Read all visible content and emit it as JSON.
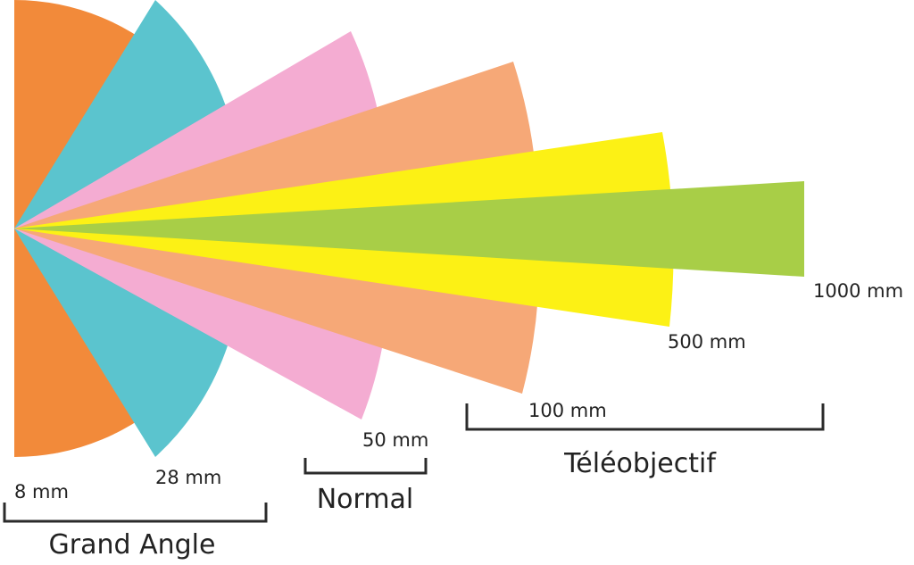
{
  "wedges": [
    {
      "focal_length": "8 mm",
      "color": "#F28A3A"
    },
    {
      "focal_length": "28 mm",
      "color": "#5BC4CE"
    },
    {
      "focal_length": "50 mm",
      "color": "#F4ACD2"
    },
    {
      "focal_length": "100 mm",
      "color": "#F6A877"
    },
    {
      "focal_length": "500 mm",
      "color": "#FCF115"
    },
    {
      "focal_length": "1000 mm",
      "color": "#A8CE47"
    }
  ],
  "groups": {
    "wide": "Grand Angle",
    "normal": "Normal",
    "tele": "Téléobjectif"
  }
}
